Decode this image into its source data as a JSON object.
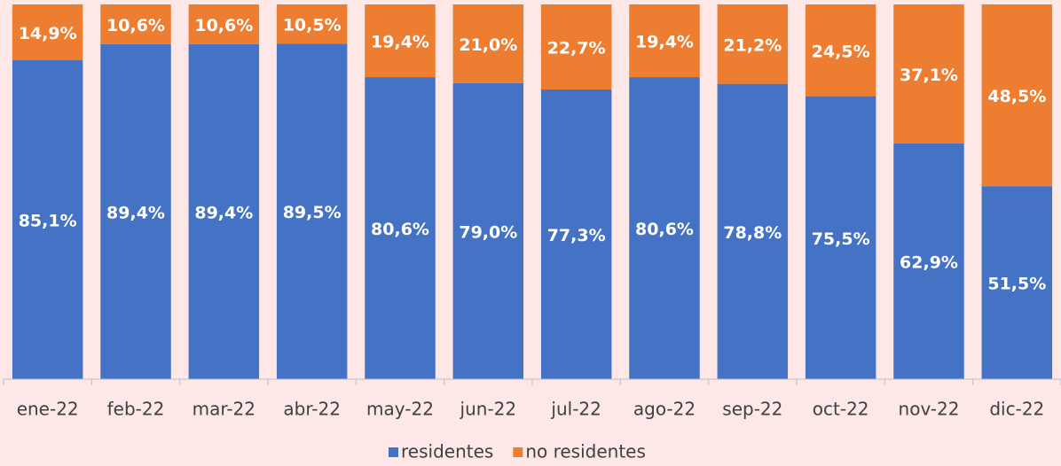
{
  "chart_data": {
    "type": "stacked_bar",
    "categories": [
      "ene-22",
      "feb-22",
      "mar-22",
      "abr-22",
      "may-22",
      "jun-22",
      "jul-22",
      "ago-22",
      "sep-22",
      "oct-22",
      "nov-22",
      "dic-22"
    ],
    "series": [
      {
        "name": "residentes",
        "color": "#4472c4",
        "values": [
          85.1,
          89.4,
          89.4,
          89.5,
          80.6,
          79.0,
          77.3,
          80.6,
          78.8,
          75.5,
          62.9,
          51.5
        ],
        "value_labels": [
          "85,1%",
          "89,4%",
          "89,4%",
          "89,5%",
          "80,6%",
          "79,0%",
          "77,3%",
          "80,6%",
          "78,8%",
          "75,5%",
          "62,9%",
          "51,5%"
        ]
      },
      {
        "name": "no residentes",
        "color": "#ed7d31",
        "values": [
          14.9,
          10.6,
          10.6,
          10.5,
          19.4,
          21.0,
          22.7,
          19.4,
          21.2,
          24.5,
          37.1,
          48.5
        ],
        "value_labels": [
          "14,9%",
          "10,6%",
          "10,6%",
          "10,5%",
          "19,4%",
          "21,0%",
          "22,7%",
          "19,4%",
          "21,2%",
          "24,5%",
          "37,1%",
          "48,5%"
        ]
      }
    ],
    "ylim": [
      0,
      100
    ],
    "legend": "bottom"
  }
}
